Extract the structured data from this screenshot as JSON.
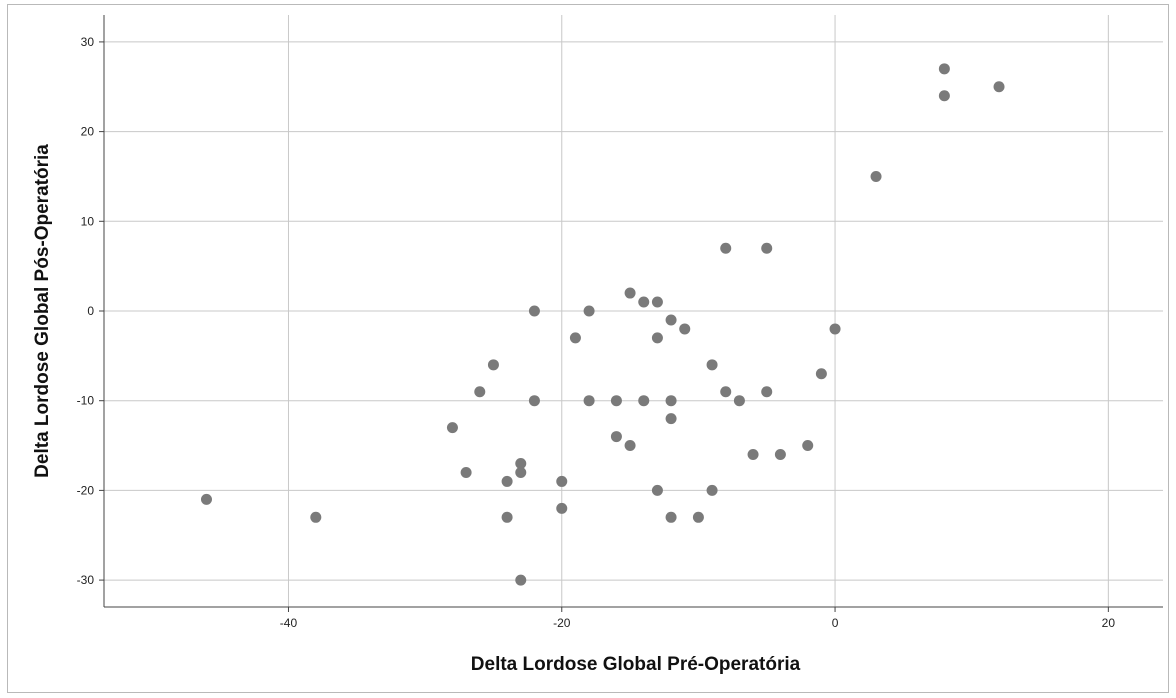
{
  "chart_data": {
    "type": "scatter",
    "title": "",
    "xlabel": "Delta Lordose Global Pré-Operatória",
    "ylabel": "Delta Lordose Global Pós-Operatória",
    "xlim": [
      -53.5,
      24
    ],
    "ylim": [
      -33,
      33
    ],
    "xticks": [
      -40,
      -20,
      0,
      20
    ],
    "yticks": [
      -30,
      -20,
      -10,
      0,
      10,
      20,
      30
    ],
    "grid": true,
    "marker_color": "#7a7a7a",
    "gridline_color": "#c8c8c8",
    "points": [
      [
        -46,
        -21
      ],
      [
        -38,
        -23
      ],
      [
        -28,
        -13
      ],
      [
        -27,
        -18
      ],
      [
        -26,
        -9
      ],
      [
        -25,
        -6
      ],
      [
        -24,
        -19
      ],
      [
        -24,
        -23
      ],
      [
        -23,
        -17
      ],
      [
        -23,
        -18
      ],
      [
        -23,
        -30
      ],
      [
        -22,
        0
      ],
      [
        -22,
        -10
      ],
      [
        -20,
        -19
      ],
      [
        -20,
        -22
      ],
      [
        -19,
        -3
      ],
      [
        -18,
        0
      ],
      [
        -18,
        -10
      ],
      [
        -16,
        -10
      ],
      [
        -16,
        -14
      ],
      [
        -15,
        2
      ],
      [
        -15,
        -15
      ],
      [
        -14,
        1
      ],
      [
        -14,
        -10
      ],
      [
        -13,
        1
      ],
      [
        -13,
        -3
      ],
      [
        -13,
        -20
      ],
      [
        -12,
        -1
      ],
      [
        -12,
        -10
      ],
      [
        -12,
        -12
      ],
      [
        -12,
        -23
      ],
      [
        -11,
        -2
      ],
      [
        -10,
        -23
      ],
      [
        -9,
        -6
      ],
      [
        -9,
        -20
      ],
      [
        -8,
        7
      ],
      [
        -8,
        -9
      ],
      [
        -7,
        -10
      ],
      [
        -6,
        -16
      ],
      [
        -5,
        7
      ],
      [
        -5,
        -9
      ],
      [
        -4,
        -16
      ],
      [
        -2,
        -15
      ],
      [
        -1,
        -7
      ],
      [
        0,
        -2
      ],
      [
        3,
        15
      ],
      [
        8,
        27
      ],
      [
        8,
        24
      ],
      [
        12,
        25
      ]
    ]
  }
}
